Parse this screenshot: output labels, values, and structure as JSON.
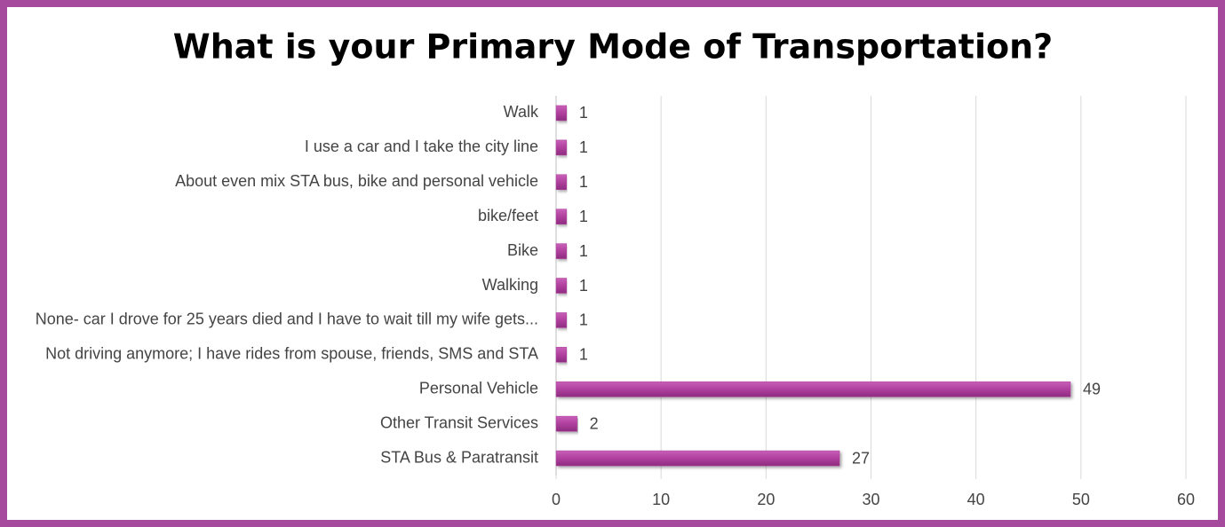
{
  "chart_data": {
    "type": "bar",
    "orientation": "horizontal",
    "title": "What is your Primary Mode of Transportation?",
    "categories": [
      "Walk",
      "I use a car and I take the city line",
      "About even mix STA bus, bike and personal vehicle",
      "bike/feet",
      "Bike",
      "Walking",
      "None- car I drove for 25 years died and I have to wait till my wife gets...",
      "Not driving anymore; I have rides from spouse, friends, SMS and STA",
      "Personal Vehicle",
      "Other Transit Services",
      "STA Bus & Paratransit"
    ],
    "values": [
      1,
      1,
      1,
      1,
      1,
      1,
      1,
      1,
      49,
      2,
      27
    ],
    "color": "#b0409e",
    "xlim": [
      0,
      60
    ],
    "xticks": [
      0,
      10,
      20,
      30,
      40,
      50,
      60
    ],
    "grid": true
  }
}
